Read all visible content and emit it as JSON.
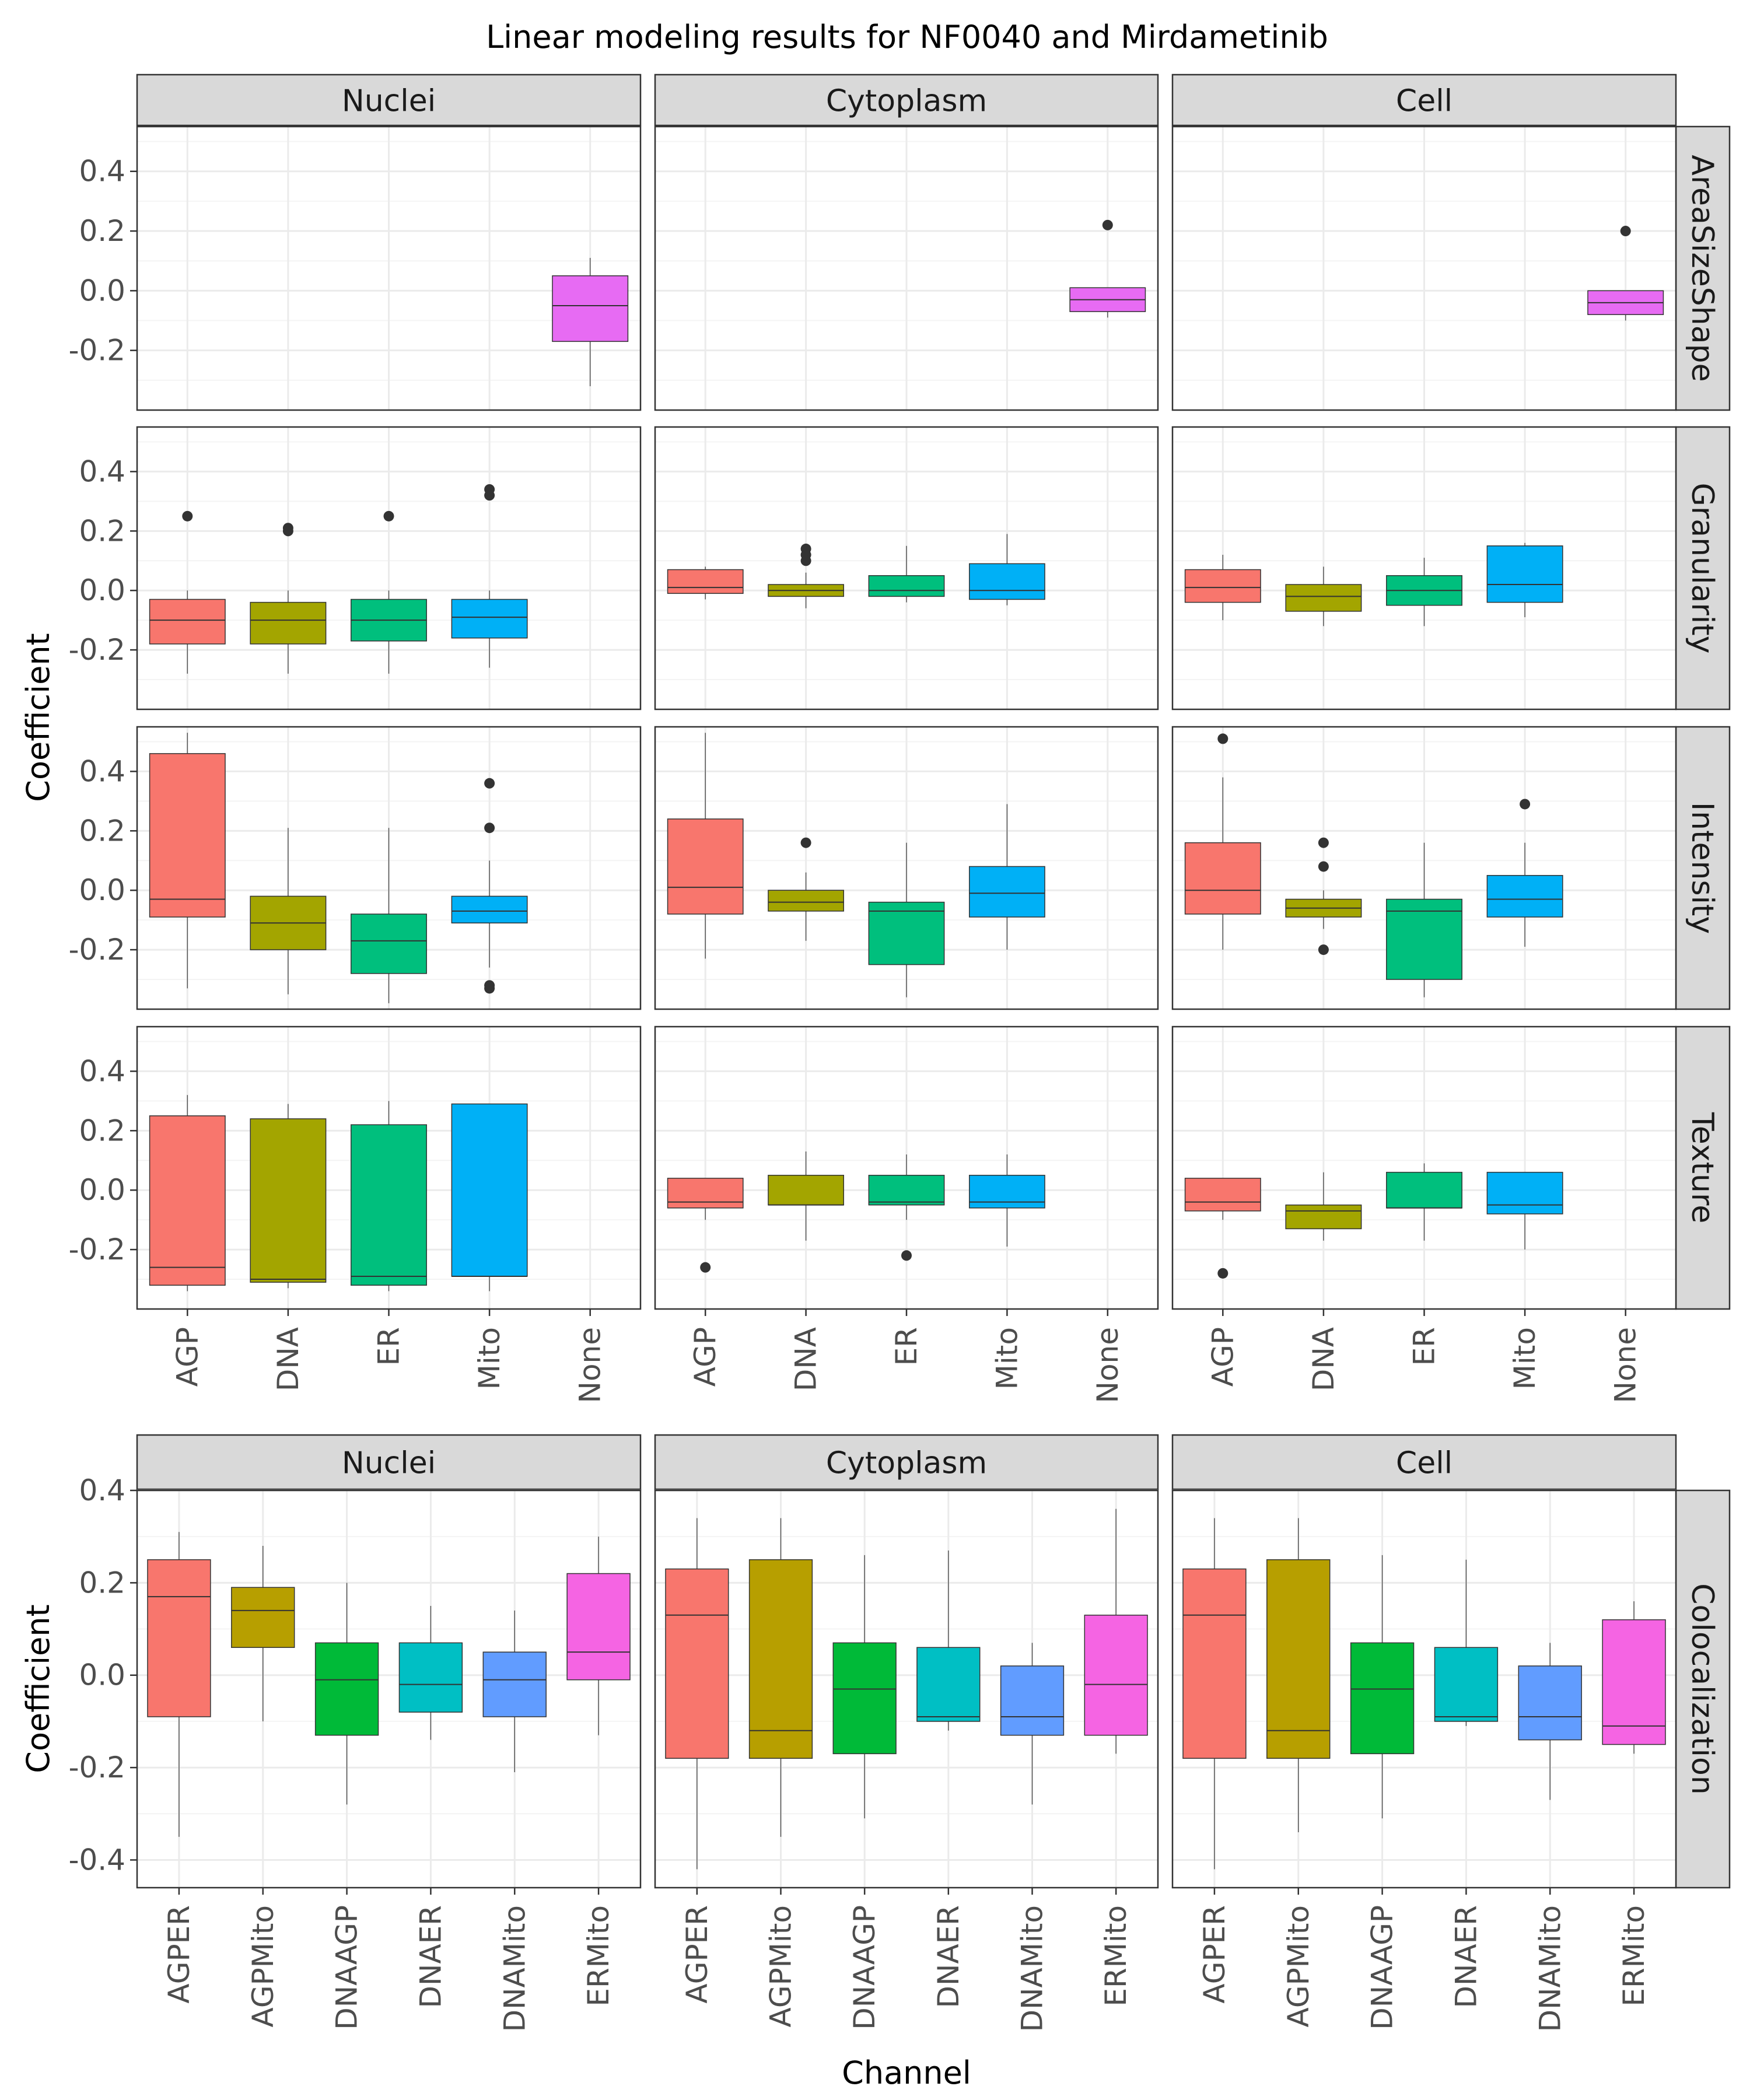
{
  "title": "Linear modeling results for NF0040 and Mirdametinib",
  "colors": {
    "panel_border": "#333333",
    "strip_fill": "#d9d9d9",
    "grid_major": "#ebebeb",
    "grid_minor": "#f4f4f4",
    "tick_text": "#4d4d4d",
    "outlier": "#333333"
  },
  "chart_data": [
    {
      "type": "box",
      "name": "top",
      "ylabel": "Coefficient",
      "xlabel": "",
      "ylim": [
        -0.4,
        0.55
      ],
      "yticks": [
        -0.2,
        0.0,
        0.2,
        0.4
      ],
      "ytick_labels": [
        "-0.2",
        "0.0",
        "0.2",
        "0.4"
      ],
      "columns": [
        "Nuclei",
        "Cytoplasm",
        "Cell"
      ],
      "rows": [
        "AreaSizeShape",
        "Granularity",
        "Intensity",
        "Texture"
      ],
      "categories": [
        "AGP",
        "DNA",
        "ER",
        "Mito",
        "None"
      ],
      "category_colors": {
        "AGP": "#F8766D",
        "DNA": "#A3A500",
        "ER": "#00BF7D",
        "Mito": "#00B0F6",
        "None": "#E76BF3"
      },
      "panels": [
        {
          "row": "AreaSizeShape",
          "col": "Nuclei",
          "boxes": [
            {
              "category": "None",
              "q1": -0.17,
              "median": -0.05,
              "q3": 0.05,
              "whisker_low": -0.32,
              "whisker_high": 0.11,
              "outliers": []
            }
          ]
        },
        {
          "row": "AreaSizeShape",
          "col": "Cytoplasm",
          "boxes": [
            {
              "category": "None",
              "q1": -0.07,
              "median": -0.03,
              "q3": 0.01,
              "whisker_low": -0.09,
              "whisker_high": 0.01,
              "outliers": [
                0.22
              ]
            }
          ]
        },
        {
          "row": "AreaSizeShape",
          "col": "Cell",
          "boxes": [
            {
              "category": "None",
              "q1": -0.08,
              "median": -0.04,
              "q3": 0.0,
              "whisker_low": -0.1,
              "whisker_high": 0.0,
              "outliers": [
                0.2
              ]
            }
          ]
        },
        {
          "row": "Granularity",
          "col": "Nuclei",
          "boxes": [
            {
              "category": "AGP",
              "q1": -0.18,
              "median": -0.1,
              "q3": -0.03,
              "whisker_low": -0.28,
              "whisker_high": 0.0,
              "outliers": [
                0.25
              ]
            },
            {
              "category": "DNA",
              "q1": -0.18,
              "median": -0.1,
              "q3": -0.04,
              "whisker_low": -0.28,
              "whisker_high": 0.0,
              "outliers": [
                0.21,
                0.2
              ]
            },
            {
              "category": "ER",
              "q1": -0.17,
              "median": -0.1,
              "q3": -0.03,
              "whisker_low": -0.28,
              "whisker_high": 0.0,
              "outliers": [
                0.25
              ]
            },
            {
              "category": "Mito",
              "q1": -0.16,
              "median": -0.09,
              "q3": -0.03,
              "whisker_low": -0.26,
              "whisker_high": 0.0,
              "outliers": [
                0.34,
                0.32
              ]
            }
          ]
        },
        {
          "row": "Granularity",
          "col": "Cytoplasm",
          "boxes": [
            {
              "category": "AGP",
              "q1": -0.01,
              "median": 0.01,
              "q3": 0.07,
              "whisker_low": -0.03,
              "whisker_high": 0.08,
              "outliers": []
            },
            {
              "category": "DNA",
              "q1": -0.02,
              "median": 0.0,
              "q3": 0.02,
              "whisker_low": -0.06,
              "whisker_high": 0.06,
              "outliers": [
                0.14,
                0.12,
                0.1
              ]
            },
            {
              "category": "ER",
              "q1": -0.02,
              "median": 0.0,
              "q3": 0.05,
              "whisker_low": -0.04,
              "whisker_high": 0.15,
              "outliers": []
            },
            {
              "category": "Mito",
              "q1": -0.03,
              "median": 0.0,
              "q3": 0.09,
              "whisker_low": -0.05,
              "whisker_high": 0.19,
              "outliers": []
            }
          ]
        },
        {
          "row": "Granularity",
          "col": "Cell",
          "boxes": [
            {
              "category": "AGP",
              "q1": -0.04,
              "median": 0.01,
              "q3": 0.07,
              "whisker_low": -0.1,
              "whisker_high": 0.12,
              "outliers": []
            },
            {
              "category": "DNA",
              "q1": -0.07,
              "median": -0.02,
              "q3": 0.02,
              "whisker_low": -0.12,
              "whisker_high": 0.08,
              "outliers": []
            },
            {
              "category": "ER",
              "q1": -0.05,
              "median": 0.0,
              "q3": 0.05,
              "whisker_low": -0.12,
              "whisker_high": 0.11,
              "outliers": []
            },
            {
              "category": "Mito",
              "q1": -0.04,
              "median": 0.02,
              "q3": 0.15,
              "whisker_low": -0.09,
              "whisker_high": 0.16,
              "outliers": []
            }
          ]
        },
        {
          "row": "Intensity",
          "col": "Nuclei",
          "boxes": [
            {
              "category": "AGP",
              "q1": -0.09,
              "median": -0.03,
              "q3": 0.46,
              "whisker_low": -0.33,
              "whisker_high": 0.53,
              "outliers": []
            },
            {
              "category": "DNA",
              "q1": -0.2,
              "median": -0.11,
              "q3": -0.02,
              "whisker_low": -0.35,
              "whisker_high": 0.21,
              "outliers": []
            },
            {
              "category": "ER",
              "q1": -0.28,
              "median": -0.17,
              "q3": -0.08,
              "whisker_low": -0.38,
              "whisker_high": 0.21,
              "outliers": []
            },
            {
              "category": "Mito",
              "q1": -0.11,
              "median": -0.07,
              "q3": -0.02,
              "whisker_low": -0.26,
              "whisker_high": 0.1,
              "outliers": [
                0.36,
                0.21,
                -0.32,
                -0.33
              ]
            }
          ]
        },
        {
          "row": "Intensity",
          "col": "Cytoplasm",
          "boxes": [
            {
              "category": "AGP",
              "q1": -0.08,
              "median": 0.01,
              "q3": 0.24,
              "whisker_low": -0.23,
              "whisker_high": 0.53,
              "outliers": []
            },
            {
              "category": "DNA",
              "q1": -0.07,
              "median": -0.04,
              "q3": 0.0,
              "whisker_low": -0.17,
              "whisker_high": 0.06,
              "outliers": [
                0.16
              ]
            },
            {
              "category": "ER",
              "q1": -0.25,
              "median": -0.07,
              "q3": -0.04,
              "whisker_low": -0.36,
              "whisker_high": 0.16,
              "outliers": []
            },
            {
              "category": "Mito",
              "q1": -0.09,
              "median": -0.01,
              "q3": 0.08,
              "whisker_low": -0.2,
              "whisker_high": 0.29,
              "outliers": []
            }
          ]
        },
        {
          "row": "Intensity",
          "col": "Cell",
          "boxes": [
            {
              "category": "AGP",
              "q1": -0.08,
              "median": 0.0,
              "q3": 0.16,
              "whisker_low": -0.2,
              "whisker_high": 0.38,
              "outliers": [
                0.51
              ]
            },
            {
              "category": "DNA",
              "q1": -0.09,
              "median": -0.06,
              "q3": -0.03,
              "whisker_low": -0.13,
              "whisker_high": 0.0,
              "outliers": [
                0.16,
                0.08,
                -0.2
              ]
            },
            {
              "category": "ER",
              "q1": -0.3,
              "median": -0.07,
              "q3": -0.03,
              "whisker_low": -0.36,
              "whisker_high": 0.16,
              "outliers": []
            },
            {
              "category": "Mito",
              "q1": -0.09,
              "median": -0.03,
              "q3": 0.05,
              "whisker_low": -0.19,
              "whisker_high": 0.16,
              "outliers": [
                0.29
              ]
            }
          ]
        },
        {
          "row": "Texture",
          "col": "Nuclei",
          "boxes": [
            {
              "category": "AGP",
              "q1": -0.32,
              "median": -0.26,
              "q3": 0.25,
              "whisker_low": -0.34,
              "whisker_high": 0.32,
              "outliers": []
            },
            {
              "category": "DNA",
              "q1": -0.31,
              "median": -0.3,
              "q3": 0.24,
              "whisker_low": -0.33,
              "whisker_high": 0.29,
              "outliers": []
            },
            {
              "category": "ER",
              "q1": -0.32,
              "median": -0.29,
              "q3": 0.22,
              "whisker_low": -0.34,
              "whisker_high": 0.3,
              "outliers": []
            },
            {
              "category": "Mito",
              "q1": -0.29,
              "median": -0.29,
              "q3": 0.29,
              "whisker_low": -0.34,
              "whisker_high": 0.29,
              "outliers": []
            }
          ]
        },
        {
          "row": "Texture",
          "col": "Cytoplasm",
          "boxes": [
            {
              "category": "AGP",
              "q1": -0.06,
              "median": -0.04,
              "q3": 0.04,
              "whisker_low": -0.1,
              "whisker_high": 0.04,
              "outliers": [
                -0.26
              ]
            },
            {
              "category": "DNA",
              "q1": -0.05,
              "median": -0.05,
              "q3": 0.05,
              "whisker_low": -0.17,
              "whisker_high": 0.13,
              "outliers": []
            },
            {
              "category": "ER",
              "q1": -0.05,
              "median": -0.04,
              "q3": 0.05,
              "whisker_low": -0.1,
              "whisker_high": 0.12,
              "outliers": [
                -0.22
              ]
            },
            {
              "category": "Mito",
              "q1": -0.06,
              "median": -0.04,
              "q3": 0.05,
              "whisker_low": -0.19,
              "whisker_high": 0.12,
              "outliers": []
            }
          ]
        },
        {
          "row": "Texture",
          "col": "Cell",
          "boxes": [
            {
              "category": "AGP",
              "q1": -0.07,
              "median": -0.04,
              "q3": 0.04,
              "whisker_low": -0.1,
              "whisker_high": 0.04,
              "outliers": [
                -0.28
              ]
            },
            {
              "category": "DNA",
              "q1": -0.13,
              "median": -0.07,
              "q3": -0.05,
              "whisker_low": -0.17,
              "whisker_high": 0.06,
              "outliers": []
            },
            {
              "category": "ER",
              "q1": -0.06,
              "median": -0.06,
              "q3": 0.06,
              "whisker_low": -0.17,
              "whisker_high": 0.09,
              "outliers": []
            },
            {
              "category": "Mito",
              "q1": -0.08,
              "median": -0.05,
              "q3": 0.06,
              "whisker_low": -0.2,
              "whisker_high": 0.06,
              "outliers": []
            }
          ]
        }
      ]
    },
    {
      "type": "box",
      "name": "bottom",
      "ylabel": "Coefficient",
      "xlabel": "Channel",
      "ylim": [
        -0.46,
        0.4
      ],
      "yticks": [
        -0.4,
        -0.2,
        0.0,
        0.2,
        0.4
      ],
      "ytick_labels": [
        "-0.4",
        "-0.2",
        "0.0",
        "0.2",
        "0.4"
      ],
      "columns": [
        "Nuclei",
        "Cytoplasm",
        "Cell"
      ],
      "rows": [
        "Colocalization"
      ],
      "categories": [
        "AGPER",
        "AGPMito",
        "DNAAGP",
        "DNAER",
        "DNAMito",
        "ERMito"
      ],
      "category_colors": {
        "AGPER": "#F8766D",
        "AGPMito": "#B79F00",
        "DNAAGP": "#00BA38",
        "DNAER": "#00BFC4",
        "DNAMito": "#619CFF",
        "ERMito": "#F564E3"
      },
      "panels": [
        {
          "row": "Colocalization",
          "col": "Nuclei",
          "boxes": [
            {
              "category": "AGPER",
              "q1": -0.09,
              "median": 0.17,
              "q3": 0.25,
              "whisker_low": -0.35,
              "whisker_high": 0.31,
              "outliers": []
            },
            {
              "category": "AGPMito",
              "q1": 0.06,
              "median": 0.14,
              "q3": 0.19,
              "whisker_low": -0.1,
              "whisker_high": 0.28,
              "outliers": []
            },
            {
              "category": "DNAAGP",
              "q1": -0.13,
              "median": -0.01,
              "q3": 0.07,
              "whisker_low": -0.28,
              "whisker_high": 0.2,
              "outliers": []
            },
            {
              "category": "DNAER",
              "q1": -0.08,
              "median": -0.02,
              "q3": 0.07,
              "whisker_low": -0.14,
              "whisker_high": 0.15,
              "outliers": []
            },
            {
              "category": "DNAMito",
              "q1": -0.09,
              "median": -0.01,
              "q3": 0.05,
              "whisker_low": -0.21,
              "whisker_high": 0.14,
              "outliers": []
            },
            {
              "category": "ERMito",
              "q1": -0.01,
              "median": 0.05,
              "q3": 0.22,
              "whisker_low": -0.13,
              "whisker_high": 0.3,
              "outliers": []
            }
          ]
        },
        {
          "row": "Colocalization",
          "col": "Cytoplasm",
          "boxes": [
            {
              "category": "AGPER",
              "q1": -0.18,
              "median": 0.13,
              "q3": 0.23,
              "whisker_low": -0.42,
              "whisker_high": 0.34,
              "outliers": []
            },
            {
              "category": "AGPMito",
              "q1": -0.18,
              "median": -0.12,
              "q3": 0.25,
              "whisker_low": -0.35,
              "whisker_high": 0.34,
              "outliers": []
            },
            {
              "category": "DNAAGP",
              "q1": -0.17,
              "median": -0.03,
              "q3": 0.07,
              "whisker_low": -0.31,
              "whisker_high": 0.26,
              "outliers": []
            },
            {
              "category": "DNAER",
              "q1": -0.1,
              "median": -0.09,
              "q3": 0.06,
              "whisker_low": -0.12,
              "whisker_high": 0.27,
              "outliers": []
            },
            {
              "category": "DNAMito",
              "q1": -0.13,
              "median": -0.09,
              "q3": 0.02,
              "whisker_low": -0.28,
              "whisker_high": 0.07,
              "outliers": []
            },
            {
              "category": "ERMito",
              "q1": -0.13,
              "median": -0.02,
              "q3": 0.13,
              "whisker_low": -0.17,
              "whisker_high": 0.36,
              "outliers": []
            }
          ]
        },
        {
          "row": "Colocalization",
          "col": "Cell",
          "boxes": [
            {
              "category": "AGPER",
              "q1": -0.18,
              "median": 0.13,
              "q3": 0.23,
              "whisker_low": -0.42,
              "whisker_high": 0.34,
              "outliers": []
            },
            {
              "category": "AGPMito",
              "q1": -0.18,
              "median": -0.12,
              "q3": 0.25,
              "whisker_low": -0.34,
              "whisker_high": 0.34,
              "outliers": []
            },
            {
              "category": "DNAAGP",
              "q1": -0.17,
              "median": -0.03,
              "q3": 0.07,
              "whisker_low": -0.31,
              "whisker_high": 0.26,
              "outliers": []
            },
            {
              "category": "DNAER",
              "q1": -0.1,
              "median": -0.09,
              "q3": 0.06,
              "whisker_low": -0.11,
              "whisker_high": 0.25,
              "outliers": []
            },
            {
              "category": "DNAMito",
              "q1": -0.14,
              "median": -0.09,
              "q3": 0.02,
              "whisker_low": -0.27,
              "whisker_high": 0.07,
              "outliers": []
            },
            {
              "category": "ERMito",
              "q1": -0.15,
              "median": -0.11,
              "q3": 0.12,
              "whisker_low": -0.17,
              "whisker_high": 0.16,
              "outliers": []
            }
          ]
        }
      ]
    }
  ]
}
